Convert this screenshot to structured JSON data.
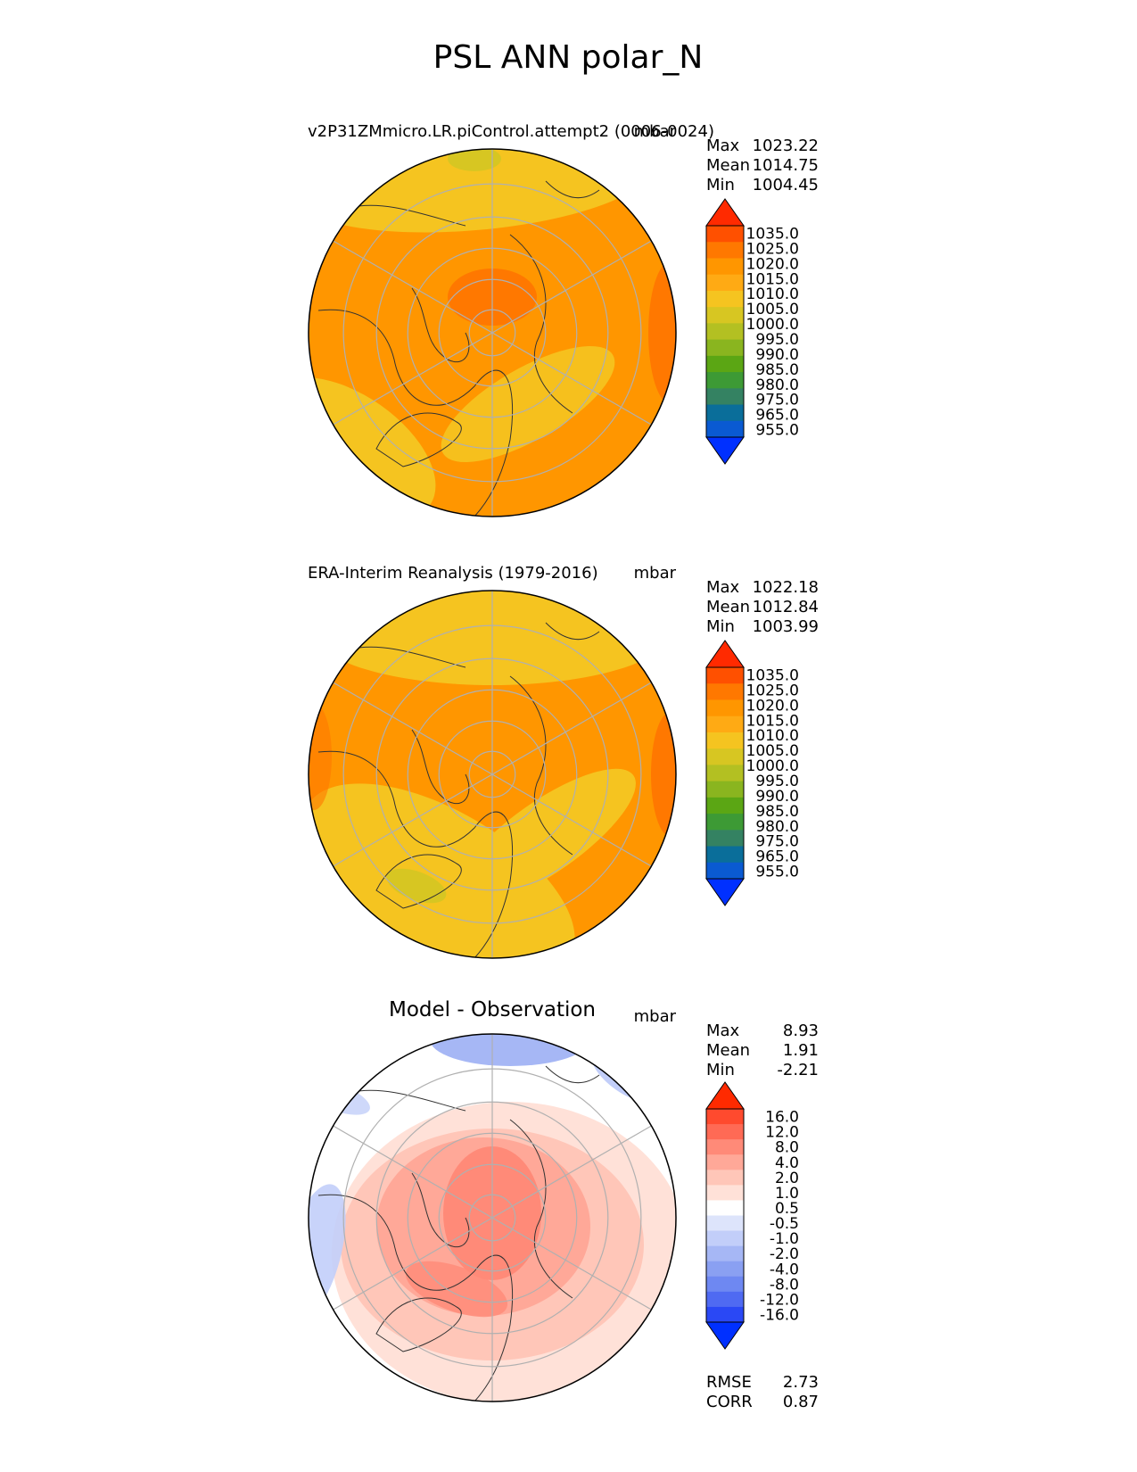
{
  "title": "PSL ANN polar_N",
  "colors": {
    "levels_full": [
      "#ff2a00",
      "#ff5000",
      "#ff7800",
      "#ff9600",
      "#ffaa14",
      "#f5c420",
      "#d7c622",
      "#b3c022",
      "#8ab51f",
      "#5ba614",
      "#3d9a35",
      "#348262",
      "#0a6e9a",
      "#0a5ad2",
      "#0030ff"
    ],
    "levels_diff": [
      "#ff2a00",
      "#ff4a2e",
      "#ff6a55",
      "#ff8a78",
      "#ffa898",
      "#ffc6b8",
      "#ffe1d8",
      "#ffffff",
      "#dde4fb",
      "#c2cef9",
      "#a6b7f5",
      "#8aa0f2",
      "#6e88f2",
      "#4f6af2",
      "#2a48f5",
      "#0030ff"
    ],
    "gridline": "#b0b0b0",
    "coast": "#333333"
  },
  "panels": [
    {
      "kind": "test",
      "left_title": "v2P31ZMmicro.LR.piControl.attempt2 (0006-0024)",
      "center_title": "",
      "units": "mbar",
      "stats": [
        {
          "label": "Max",
          "value": "1023.22"
        },
        {
          "label": "Mean",
          "value": "1014.75"
        },
        {
          "label": "Min",
          "value": "1004.45"
        }
      ],
      "colorbar": {
        "ticks": [
          "1035.0",
          "1025.0",
          "1020.0",
          "1015.0",
          "1010.0",
          "1005.0",
          "1000.0",
          "995.0",
          "990.0",
          "985.0",
          "980.0",
          "975.0",
          "965.0",
          "955.0"
        ]
      },
      "extra_stats": []
    },
    {
      "kind": "ref",
      "left_title": "ERA-Interim Reanalysis (1979-2016)",
      "center_title": "",
      "units": "mbar",
      "stats": [
        {
          "label": "Max",
          "value": "1022.18"
        },
        {
          "label": "Mean",
          "value": "1012.84"
        },
        {
          "label": "Min",
          "value": "1003.99"
        }
      ],
      "colorbar": {
        "ticks": [
          "1035.0",
          "1025.0",
          "1020.0",
          "1015.0",
          "1010.0",
          "1005.0",
          "1000.0",
          "995.0",
          "990.0",
          "985.0",
          "980.0",
          "975.0",
          "965.0",
          "955.0"
        ]
      },
      "extra_stats": []
    },
    {
      "kind": "diff",
      "left_title": "",
      "center_title": "Model - Observation",
      "units": "mbar",
      "stats": [
        {
          "label": "Max",
          "value": "8.93"
        },
        {
          "label": "Mean",
          "value": "1.91"
        },
        {
          "label": "Min",
          "value": "-2.21"
        }
      ],
      "colorbar": {
        "ticks": [
          "16.0",
          "12.0",
          "8.0",
          "4.0",
          "2.0",
          "1.0",
          "0.5",
          "-0.5",
          "-1.0",
          "-2.0",
          "-4.0",
          "-8.0",
          "-12.0",
          "-16.0"
        ]
      },
      "extra_stats": [
        {
          "label": "RMSE",
          "value": "2.73"
        },
        {
          "label": "CORR",
          "value": "0.87"
        }
      ]
    }
  ],
  "chart_data": {
    "type": "heatmap",
    "projection": "north polar stereographic",
    "variable": "PSL",
    "season": "ANN",
    "region": "polar_N",
    "units": "mbar",
    "field_levels": [
      955,
      965,
      975,
      980,
      985,
      990,
      995,
      1000,
      1005,
      1010,
      1015,
      1020,
      1025,
      1035
    ],
    "diff_levels": [
      -16,
      -12,
      -8,
      -4,
      -2,
      -1,
      -0.5,
      0.5,
      1,
      2,
      4,
      8,
      12,
      16
    ],
    "grid": true
  }
}
